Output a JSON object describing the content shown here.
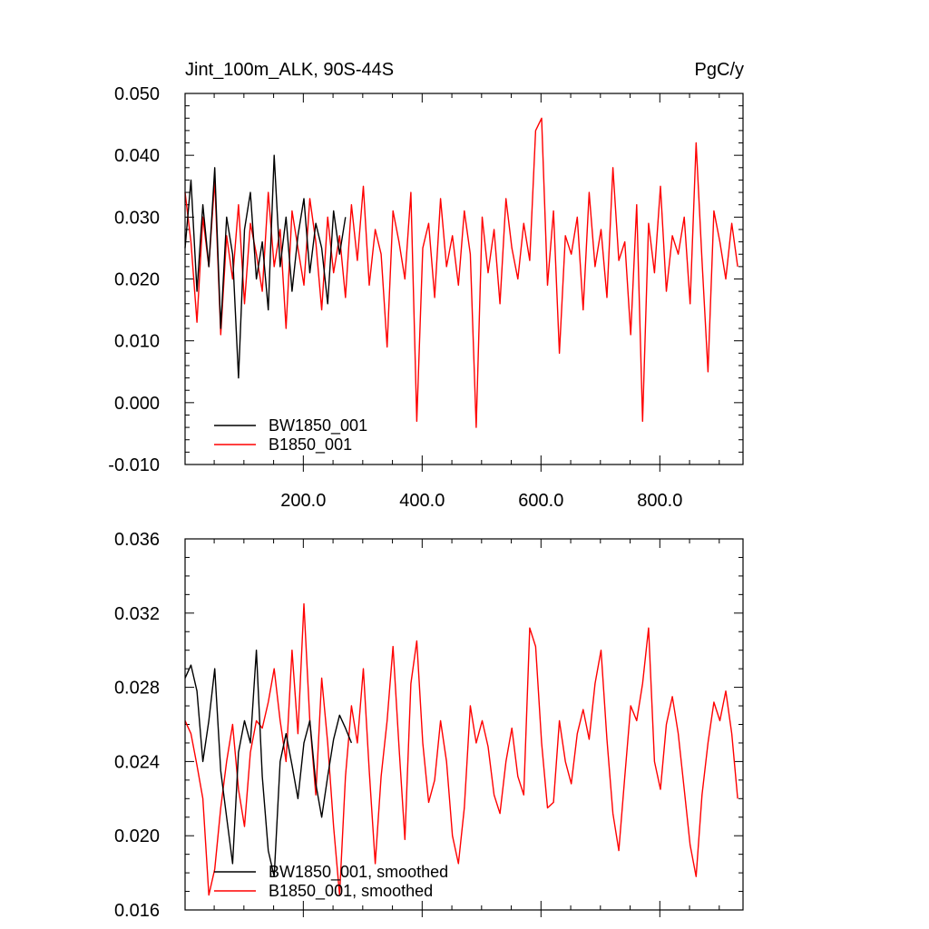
{
  "chart_data": [
    {
      "type": "line",
      "title_left": "Jint_100m_ALK, 90S-44S",
      "title_right": "PgC/y",
      "xlim": [
        1,
        940
      ],
      "ylim": [
        -0.01,
        0.05
      ],
      "x_ticks": [
        200,
        400,
        600,
        800
      ],
      "x_tick_labels": [
        "200.0",
        "400.0",
        "600.0",
        "800.0"
      ],
      "y_ticks": [
        -0.01,
        0.0,
        0.01,
        0.02,
        0.03,
        0.04,
        0.05
      ],
      "y_tick_labels": [
        "-0.010",
        "0.000",
        "0.010",
        "0.020",
        "0.030",
        "0.040",
        "0.050"
      ],
      "legend_position": "bottom-left",
      "series": [
        {
          "name": "BW1850_001",
          "color": "#000000",
          "x_start": 1,
          "x_step": 10,
          "values": [
            0.025,
            0.036,
            0.018,
            0.032,
            0.022,
            0.038,
            0.012,
            0.03,
            0.024,
            0.004,
            0.028,
            0.034,
            0.02,
            0.026,
            0.015,
            0.04,
            0.022,
            0.03,
            0.018,
            0.027,
            0.033,
            0.021,
            0.029,
            0.025,
            0.016,
            0.031,
            0.024,
            0.03
          ]
        },
        {
          "name": "B1850_001",
          "color": "#ff0000",
          "x_start": 1,
          "x_step": 10,
          "values": [
            0.034,
            0.026,
            0.013,
            0.03,
            0.022,
            0.036,
            0.011,
            0.027,
            0.02,
            0.032,
            0.016,
            0.029,
            0.024,
            0.018,
            0.034,
            0.022,
            0.028,
            0.012,
            0.031,
            0.025,
            0.019,
            0.033,
            0.026,
            0.015,
            0.03,
            0.021,
            0.027,
            0.017,
            0.032,
            0.023,
            0.035,
            0.019,
            0.028,
            0.024,
            0.009,
            0.031,
            0.026,
            0.02,
            0.034,
            -0.003,
            0.025,
            0.029,
            0.017,
            0.033,
            0.022,
            0.027,
            0.019,
            0.031,
            0.024,
            -0.004,
            0.03,
            0.021,
            0.028,
            0.016,
            0.033,
            0.025,
            0.02,
            0.029,
            0.023,
            0.044,
            0.046,
            0.019,
            0.031,
            0.008,
            0.027,
            0.024,
            0.03,
            0.015,
            0.034,
            0.022,
            0.028,
            0.017,
            0.038,
            0.023,
            0.026,
            0.011,
            0.032,
            -0.003,
            0.029,
            0.021,
            0.035,
            0.018,
            0.027,
            0.024,
            0.03,
            0.016,
            0.042,
            0.023,
            0.005,
            0.031,
            0.026,
            0.02,
            0.029,
            0.022
          ]
        }
      ]
    },
    {
      "type": "line",
      "xlim": [
        1,
        940
      ],
      "ylim": [
        0.016,
        0.036
      ],
      "y_ticks": [
        0.016,
        0.02,
        0.024,
        0.028,
        0.032,
        0.036
      ],
      "y_tick_labels": [
        "0.016",
        "0.020",
        "0.024",
        "0.028",
        "0.032",
        "0.036"
      ],
      "legend_position": "bottom-left",
      "series": [
        {
          "name": "BW1850_001, smoothed",
          "color": "#000000",
          "x_start": 1,
          "x_step": 10,
          "values": [
            0.0285,
            0.0292,
            0.0278,
            0.024,
            0.0262,
            0.029,
            0.0235,
            0.021,
            0.0185,
            0.0245,
            0.0262,
            0.025,
            0.03,
            0.0232,
            0.0192,
            0.0178,
            0.024,
            0.0255,
            0.0238,
            0.022,
            0.025,
            0.0262,
            0.0228,
            0.021,
            0.0232,
            0.0252,
            0.0265,
            0.0258,
            0.025
          ]
        },
        {
          "name": "B1850_001, smoothed",
          "color": "#ff0000",
          "x_start": 1,
          "x_step": 10,
          "values": [
            0.0262,
            0.0255,
            0.0238,
            0.022,
            0.0168,
            0.0182,
            0.0215,
            0.024,
            0.026,
            0.0225,
            0.0205,
            0.0245,
            0.0262,
            0.0258,
            0.0272,
            0.029,
            0.0262,
            0.024,
            0.03,
            0.0255,
            0.0325,
            0.0262,
            0.0222,
            0.0285,
            0.025,
            0.0205,
            0.0168,
            0.0232,
            0.027,
            0.025,
            0.029,
            0.0235,
            0.0185,
            0.0232,
            0.0262,
            0.0302,
            0.0248,
            0.0198,
            0.0282,
            0.0305,
            0.025,
            0.0218,
            0.023,
            0.0262,
            0.024,
            0.02,
            0.0185,
            0.0215,
            0.027,
            0.025,
            0.0262,
            0.0248,
            0.0222,
            0.0212,
            0.024,
            0.0258,
            0.0232,
            0.0222,
            0.0312,
            0.0302,
            0.025,
            0.0215,
            0.0218,
            0.0262,
            0.024,
            0.0228,
            0.0255,
            0.0268,
            0.0252,
            0.0282,
            0.03,
            0.0252,
            0.0212,
            0.0192,
            0.0232,
            0.027,
            0.0262,
            0.0282,
            0.0312,
            0.024,
            0.0225,
            0.026,
            0.0275,
            0.0255,
            0.0225,
            0.0195,
            0.0178,
            0.0222,
            0.025,
            0.0272,
            0.0262,
            0.0278,
            0.0255,
            0.022
          ]
        }
      ]
    }
  ]
}
